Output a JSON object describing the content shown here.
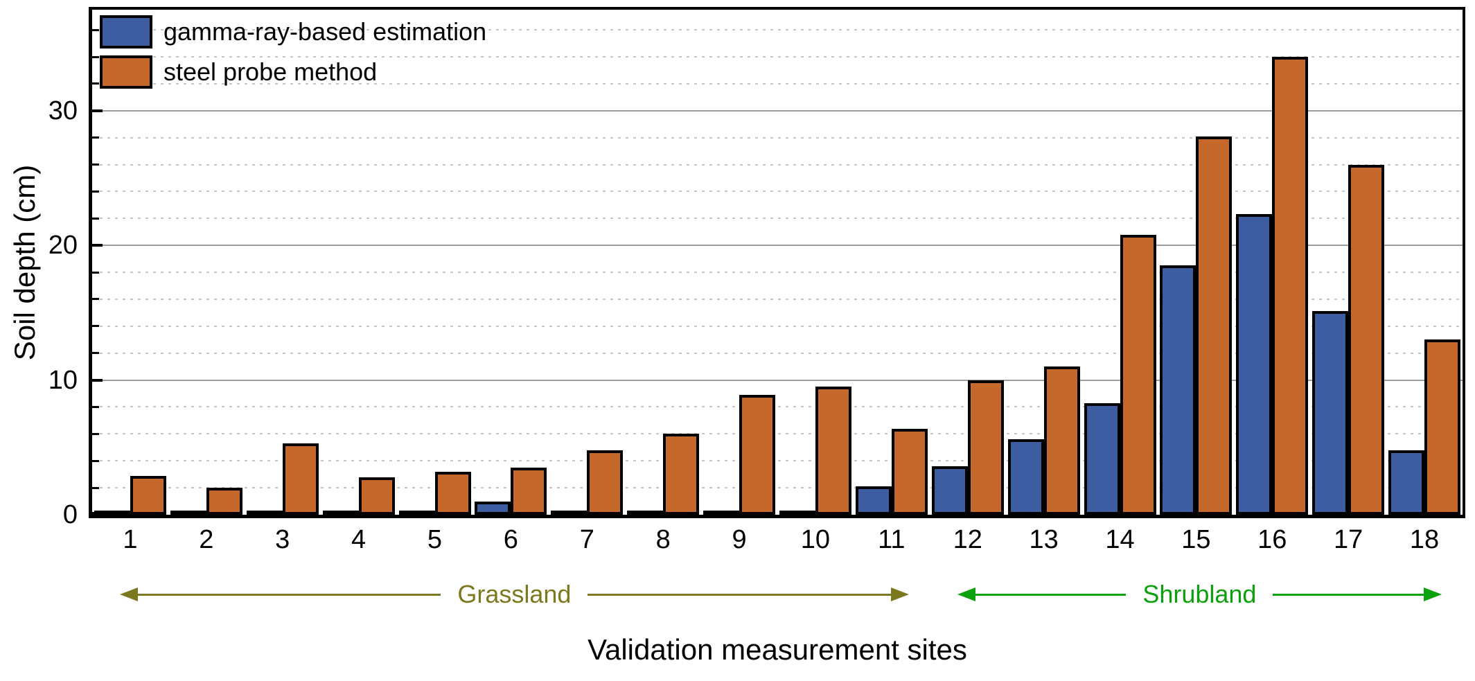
{
  "chart_data": {
    "type": "bar",
    "title": "",
    "xlabel": "Validation measurement sites",
    "ylabel": "Soil depth (cm)",
    "categories": [
      "1",
      "2",
      "3",
      "4",
      "5",
      "6",
      "7",
      "8",
      "9",
      "10",
      "11",
      "12",
      "13",
      "14",
      "15",
      "16",
      "17",
      "18"
    ],
    "series": [
      {
        "name": "gamma-ray-based estimation",
        "color": "#3E5CA0",
        "values": [
          0.1,
          0.1,
          0.3,
          0.3,
          0.2,
          1.0,
          0.2,
          0.2,
          0.1,
          0.2,
          2.1,
          3.6,
          5.6,
          8.3,
          18.5,
          22.3,
          15.1,
          4.8
        ]
      },
      {
        "name": "steel probe method",
        "color": "#C4682B",
        "values": [
          2.9,
          2.0,
          5.3,
          2.8,
          3.2,
          3.5,
          4.8,
          6.0,
          8.9,
          9.5,
          6.4,
          10.0,
          11.0,
          20.8,
          28.1,
          34.0,
          26.0,
          13.0
        ]
      }
    ],
    "ylim": [
      0,
      37.5
    ],
    "yticks_major": [
      0,
      10,
      20,
      30
    ],
    "yticks_minor": [
      2,
      4,
      6,
      8,
      12,
      14,
      16,
      18,
      22,
      24,
      26,
      28,
      32,
      34,
      36
    ],
    "grid": {
      "major_style": "solid",
      "minor_style": "dotted",
      "major_color": "#9d9d9d",
      "minor_color": "#c5c5c5"
    },
    "legend_position": "top-left",
    "bar_border_color": "#000000",
    "regions": [
      {
        "label": "Grassland",
        "color": "#7C7820",
        "from_category": "1",
        "to_category": "11"
      },
      {
        "label": "Shrubland",
        "color": "#0CA00C",
        "from_category": "12",
        "to_category": "18"
      }
    ]
  }
}
